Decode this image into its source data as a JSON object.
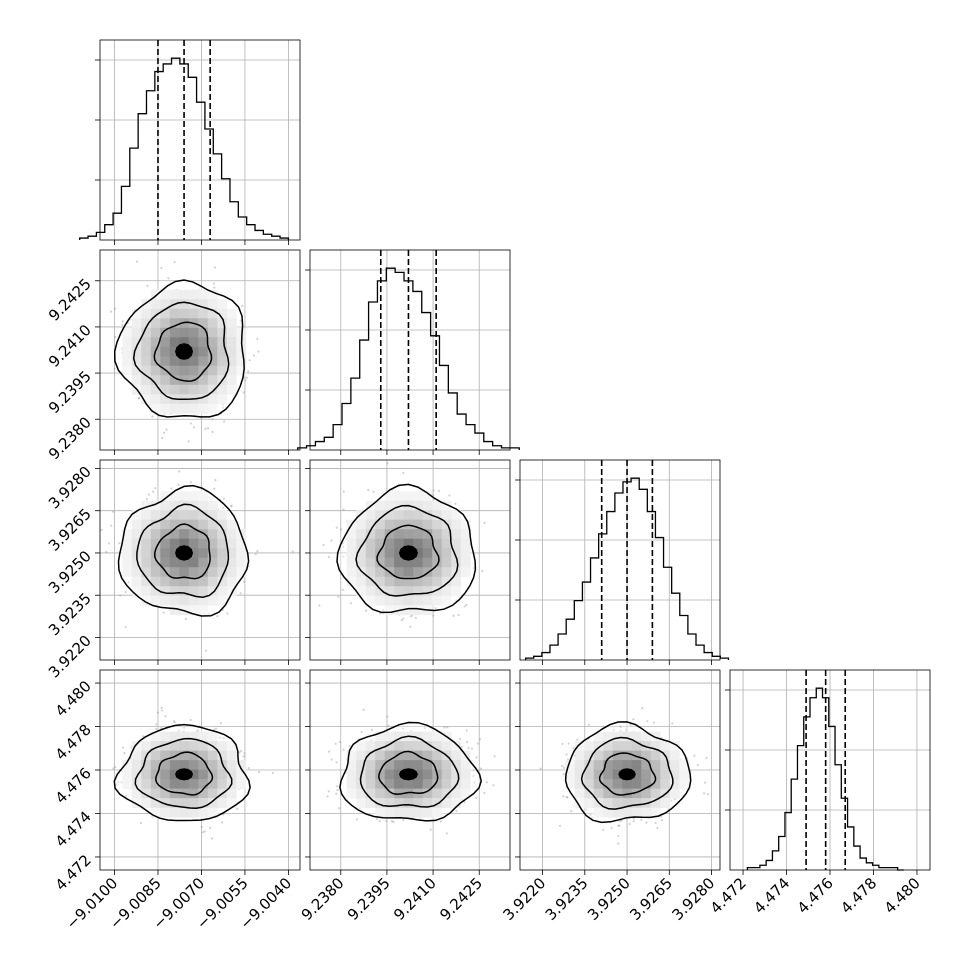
{
  "chart_data": {
    "type": "corner",
    "grid": true,
    "colors": {
      "line": "#000000",
      "grid": "#b0b0b0",
      "scatter": "#9a9a9a"
    },
    "parameters": [
      {
        "mean": -9.0076,
        "sigma": 0.0009,
        "range": [
          -9.0105,
          -9.0036
        ],
        "ticks": [
          "−9.0100",
          "−9.0085",
          "−9.0070",
          "−9.0055",
          "−9.0040"
        ],
        "tick_values": [
          -9.01,
          -9.0085,
          -9.007,
          -9.0055,
          -9.004
        ],
        "quantiles": [
          -9.0085,
          -9.0076,
          -9.0067
        ],
        "hist": [
          1,
          2,
          4,
          8,
          14,
          28,
          48,
          66,
          78,
          88,
          92,
          95,
          92,
          85,
          72,
          58,
          45,
          32,
          20,
          12,
          8,
          5,
          3,
          2,
          1
        ]
      },
      {
        "mean": 9.2402,
        "sigma": 0.0009,
        "range": [
          9.237,
          9.2435
        ],
        "ticks": [
          "9.2380",
          "9.2395",
          "9.2410",
          "9.2425"
        ],
        "tick_values": [
          9.238,
          9.2395,
          9.241,
          9.2425
        ],
        "quantiles": [
          9.2393,
          9.2402,
          9.2411
        ],
        "hist": [
          1,
          2,
          4,
          6,
          12,
          22,
          34,
          52,
          70,
          80,
          86,
          84,
          80,
          75,
          65,
          54,
          40,
          27,
          17,
          12,
          8,
          4,
          2,
          1,
          1
        ]
      },
      {
        "mean": 3.925,
        "sigma": 0.0009,
        "range": [
          3.9212,
          3.9283
        ],
        "ticks": [
          "3.9220",
          "3.9235",
          "3.9250",
          "3.9265",
          "3.9280"
        ],
        "tick_values": [
          3.922,
          3.9235,
          3.925,
          3.9265,
          3.928
        ],
        "quantiles": [
          3.9241,
          3.925,
          3.9259
        ],
        "hist": [
          1,
          2,
          4,
          8,
          14,
          22,
          32,
          42,
          55,
          68,
          80,
          90,
          96,
          98,
          92,
          80,
          66,
          50,
          36,
          24,
          14,
          8,
          4,
          2,
          1
        ]
      },
      {
        "mean": 4.4758,
        "sigma": 0.0009,
        "range": [
          4.4714,
          4.4806
        ],
        "ticks": [
          "4.472",
          "4.474",
          "4.476",
          "4.478",
          "4.480"
        ],
        "tick_values": [
          4.472,
          4.474,
          4.476,
          4.478,
          4.48
        ],
        "quantiles": [
          4.4749,
          4.4758,
          4.4767
        ],
        "hist": [
          1,
          1,
          2,
          4,
          8,
          14,
          24,
          38,
          52,
          64,
          72,
          76,
          72,
          60,
          44,
          30,
          18,
          10,
          5,
          3,
          2,
          1,
          1,
          1,
          0
        ]
      }
    ]
  }
}
